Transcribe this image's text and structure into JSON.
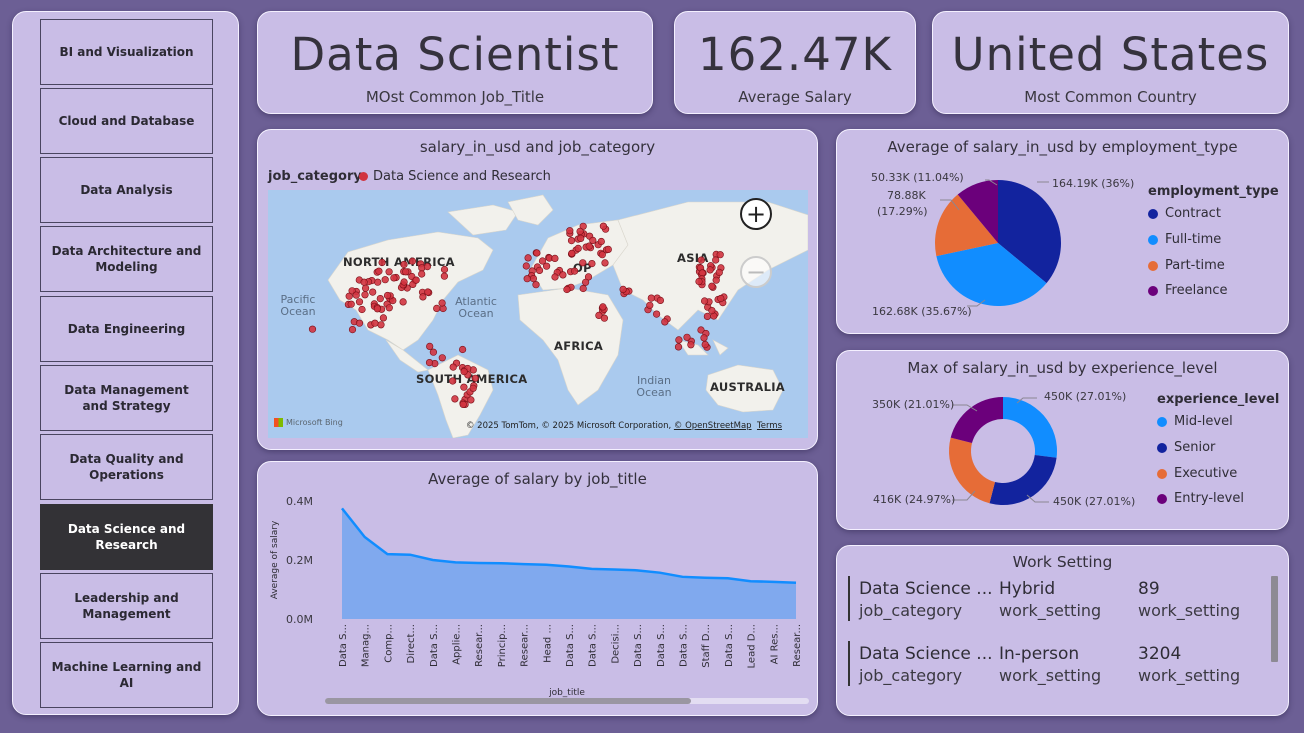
{
  "sidebar": {
    "items": [
      {
        "label": "BI and Visualization"
      },
      {
        "label": "Cloud and Database"
      },
      {
        "label": "Data Analysis"
      },
      {
        "label": "Data Architecture and Modeling"
      },
      {
        "label": "Data Engineering"
      },
      {
        "label": "Data Management and Strategy"
      },
      {
        "label": "Data Quality and Operations"
      },
      {
        "label": "Data Science and Research"
      },
      {
        "label": "Leadership and Management"
      },
      {
        "label": "Machine Learning and AI"
      }
    ],
    "active": "Data Science and Research"
  },
  "kpis": {
    "job_title": {
      "value": "Data Scientist",
      "label": "MOst Common Job_Title"
    },
    "salary": {
      "value": "162.47K",
      "label": "Average Salary"
    },
    "country": {
      "value": "United States",
      "label": "Most Common Country"
    }
  },
  "map": {
    "title": "salary_in_usd and job_category",
    "legend_title": "job_category",
    "legend_item": "Data Science and Research",
    "legend_color": "#d13440",
    "continents": {
      "na": "NORTH AMERICA",
      "sa": "SOUTH AMERICA",
      "africa": "AFRICA",
      "asia": "ASIA",
      "australia": "AUSTRALIA",
      "europe_partial": "OP"
    },
    "oceans": {
      "pacific": "Pacific Ocean",
      "atlantic": "Atlantic Ocean",
      "indian": "Indian Ocean"
    },
    "zoom_in": "+",
    "zoom_out": "−",
    "bing": "Microsoft Bing",
    "attribution": "© 2025 TomTom, © 2025 Microsoft Corporation,",
    "osm": "© OpenStreetMap",
    "terms": "Terms"
  },
  "employment": {
    "title": "Average of salary_in_usd by employment_type",
    "legend_title": "employment_type",
    "slices": [
      {
        "name": "Contract",
        "value": 164190,
        "label": "164.19K (36%)",
        "color": "#12239e"
      },
      {
        "name": "Full-time",
        "value": 162680,
        "label": "162.68K (35.67%)",
        "color": "#118dff"
      },
      {
        "name": "Part-time",
        "value": 78880,
        "label_line1": "78.88K",
        "label_line2": "(17.29%)",
        "color": "#e66c37"
      },
      {
        "name": "Freelance",
        "value": 50330,
        "label": "50.33K (11.04%)",
        "color": "#6b007b"
      }
    ]
  },
  "experience": {
    "title": "Max of salary_in_usd by experience_level",
    "legend_title": "experience_level",
    "slices": [
      {
        "name": "Mid-level",
        "value": 450000,
        "label": "450K (27.01%)",
        "color": "#118dff"
      },
      {
        "name": "Senior",
        "value": 450000,
        "label": "450K (27.01%)",
        "color": "#12239e"
      },
      {
        "name": "Executive",
        "value": 416000,
        "label": "416K (24.97%)",
        "color": "#e66c37"
      },
      {
        "name": "Entry-level",
        "value": 350000,
        "label": "350K (21.01%)",
        "color": "#6b007b"
      }
    ]
  },
  "chart_data": {
    "type": "area",
    "title": "Average of salary by job_title",
    "xlabel": "job_title",
    "ylabel": "Average of salary",
    "ylim": [
      0,
      400000
    ],
    "ytick_labels": [
      "0.0M",
      "0.2M",
      "0.4M"
    ],
    "ytick_values": [
      0,
      200000,
      400000
    ],
    "categories": [
      "Data S...",
      "Manag...",
      "Comp...",
      "Direct...",
      "Data S...",
      "Applie...",
      "Resear...",
      "Princip...",
      "Resear...",
      "Head ...",
      "Data S...",
      "Data S...",
      "Decisi...",
      "Data S...",
      "Data S...",
      "Data S...",
      "Staff D...",
      "Data S...",
      "Lead D...",
      "AI Res...",
      "Resear..."
    ],
    "values": [
      375000,
      278000,
      220000,
      218000,
      200000,
      192000,
      190000,
      189000,
      186000,
      184000,
      178000,
      170000,
      168000,
      165000,
      157000,
      143000,
      140000,
      138000,
      128000,
      126000,
      123000
    ],
    "color": "#80a9ee",
    "line_color": "#118dff"
  },
  "work_setting": {
    "title": "Work Setting",
    "rows": [
      {
        "category": "Data Science ...",
        "category_label": "job_category",
        "setting": "Hybrid",
        "setting_label": "work_setting",
        "count": "89",
        "count_label": "work_setting"
      },
      {
        "category": "Data Science ...",
        "category_label": "job_category",
        "setting": "In-person",
        "setting_label": "work_setting",
        "count": "3204",
        "count_label": "work_setting"
      }
    ]
  }
}
